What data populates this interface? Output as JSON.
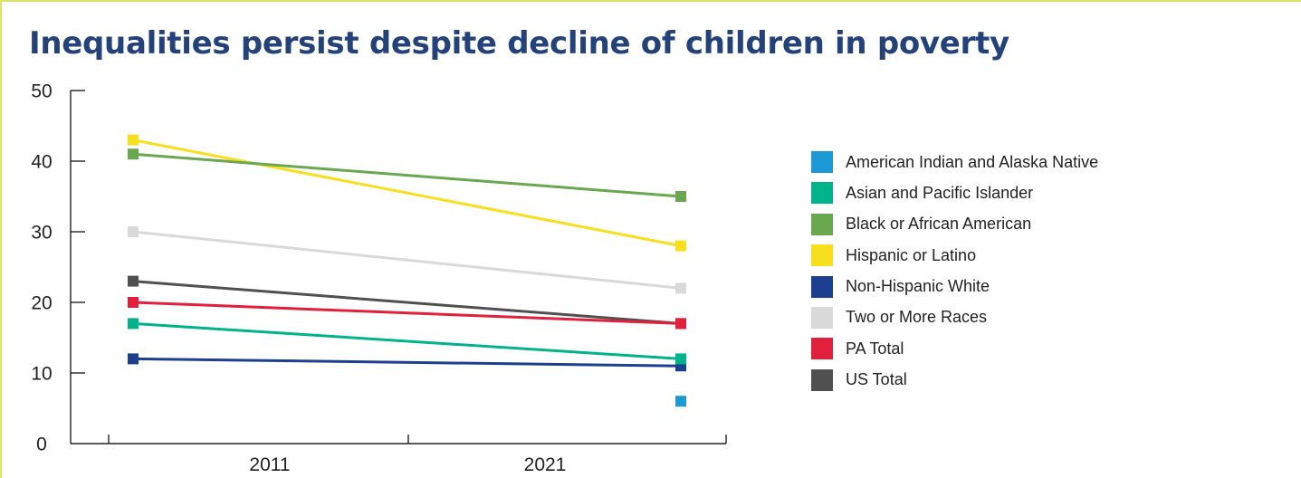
{
  "chart_data": {
    "type": "line",
    "title": "Inequalities persist despite decline of children in poverty",
    "xlabel": "",
    "ylabel": "",
    "categories": [
      "2011",
      "2021"
    ],
    "ylim": [
      0,
      50
    ],
    "yticks": [
      "0",
      "10",
      "20",
      "30",
      "40",
      "50"
    ],
    "grid": false,
    "legend_position": "right",
    "series": [
      {
        "name": "American Indian and Alaska Native",
        "color": "#1d9ad6",
        "values": [
          null,
          6
        ]
      },
      {
        "name": "Asian and Pacific Islander",
        "color": "#00b38a",
        "values": [
          17,
          12
        ]
      },
      {
        "name": "Black or African American",
        "color": "#6aa84f",
        "values": [
          41,
          35
        ]
      },
      {
        "name": "Hispanic or Latino",
        "color": "#f7df1e",
        "values": [
          43,
          28
        ]
      },
      {
        "name": "Non-Hispanic White",
        "color": "#1d3f8f",
        "values": [
          12,
          11
        ]
      },
      {
        "name": "Two or More Races",
        "color": "#d9d9d9",
        "values": [
          30,
          22
        ]
      },
      {
        "name": "PA Total",
        "color": "#e0203c",
        "values": [
          20,
          17
        ]
      },
      {
        "name": "US Total",
        "color": "#505050",
        "values": [
          23,
          17
        ]
      }
    ]
  }
}
